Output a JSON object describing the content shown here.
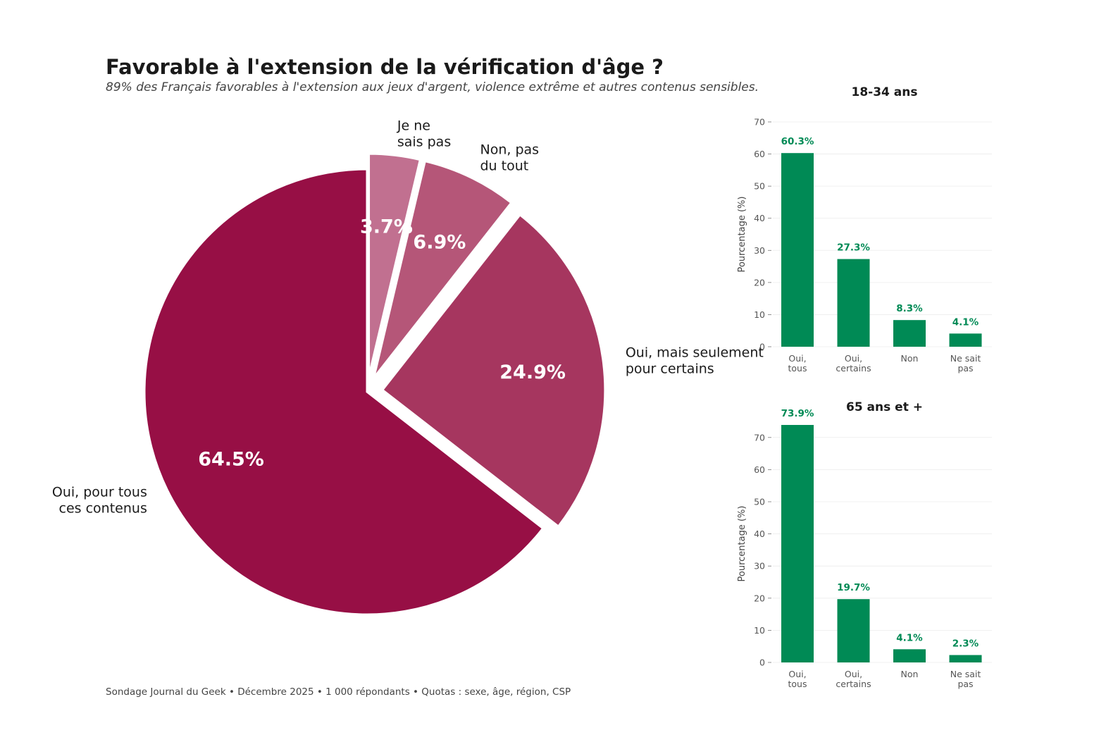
{
  "header": {
    "title": "Favorable à l'extension de la vérification d'âge ?",
    "subtitle": "89% des Français favorables à l'extension aux jeux d'argent, violence extrême et autres contenus sensibles."
  },
  "footer": "Sondage Journal du Geek • Décembre 2025 • 1 000 répondants • Quotas : sexe, âge, région, CSP",
  "colors": {
    "bar": "#008a55",
    "bar_label": "#008a55"
  },
  "chart_data": [
    {
      "type": "pie",
      "slices": [
        {
          "label_lines": [
            "Oui, pour tous",
            "ces contenus"
          ],
          "value": 64.5,
          "value_label": "64.5%",
          "color": "#970f45",
          "exploded": false
        },
        {
          "label_lines": [
            "Oui, mais seulement",
            "pour certains"
          ],
          "value": 24.9,
          "value_label": "24.9%",
          "color": "#a6365f",
          "exploded": true
        },
        {
          "label_lines": [
            "Non, pas",
            "du tout"
          ],
          "value": 6.9,
          "value_label": "6.9%",
          "color": "#b55678",
          "exploded": true
        },
        {
          "label_lines": [
            "Je ne",
            "sais pas"
          ],
          "value": 3.7,
          "value_label": "3.7%",
          "color": "#c17090",
          "exploded": true
        }
      ]
    },
    {
      "type": "bar",
      "title": "18-34 ans",
      "ylabel": "Pourcentage (%)",
      "categories": [
        [
          "Oui,",
          "tous"
        ],
        [
          "Oui,",
          "certains"
        ],
        [
          "Non"
        ],
        [
          "Ne sait",
          "pas"
        ]
      ],
      "values": [
        60.3,
        27.3,
        8.3,
        4.1
      ],
      "value_labels": [
        "60.3%",
        "27.3%",
        "8.3%",
        "4.1%"
      ],
      "ylim": [
        0,
        70
      ],
      "yticks": [
        0,
        10,
        20,
        30,
        40,
        50,
        60,
        70
      ],
      "grid": true
    },
    {
      "type": "bar",
      "title": "65 ans et +",
      "ylabel": "Pourcentage (%)",
      "categories": [
        [
          "Oui,",
          "tous"
        ],
        [
          "Oui,",
          "certains"
        ],
        [
          "Non"
        ],
        [
          "Ne sait",
          "pas"
        ]
      ],
      "values": [
        73.9,
        19.7,
        4.1,
        2.3
      ],
      "value_labels": [
        "73.9%",
        "19.7%",
        "4.1%",
        "2.3%"
      ],
      "ylim": [
        0,
        73.9
      ],
      "yticks": [
        0,
        10,
        20,
        30,
        40,
        50,
        60,
        70
      ],
      "grid": true
    }
  ]
}
